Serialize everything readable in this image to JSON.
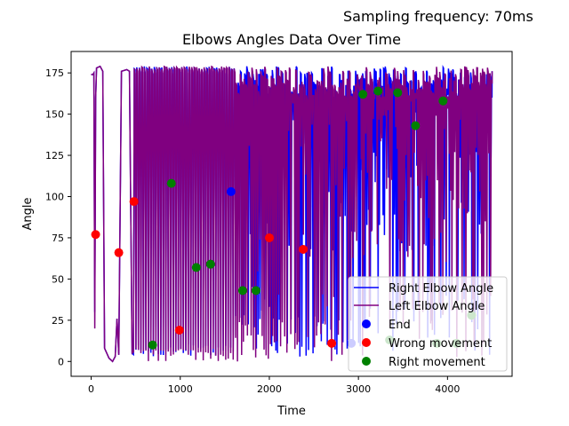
{
  "chart_data": {
    "type": "line",
    "suptitle": "Sampling frequency: 70ms",
    "title": "Elbows Angles Data Over Time",
    "xlabel": "Time",
    "ylabel": "Angle",
    "xlim": [
      -225,
      4725
    ],
    "ylim": [
      -9,
      188
    ],
    "x_ticks": [
      0,
      1000,
      2000,
      3000,
      4000
    ],
    "y_ticks": [
      0,
      25,
      50,
      75,
      100,
      125,
      150,
      175
    ],
    "grid": false,
    "legend_position": "lower-right",
    "series": [
      {
        "name": "Right Elbow Angle",
        "color": "#0000ff",
        "style": "line"
      },
      {
        "name": "Left Elbow Angle",
        "color": "#800080",
        "style": "line"
      },
      {
        "name": "End",
        "color": "#0000ff",
        "style": "scatter",
        "points": [
          [
            1570,
            103
          ],
          [
            2920,
            11
          ]
        ]
      },
      {
        "name": "Wrong movement",
        "color": "#ff0000",
        "style": "scatter",
        "points": [
          [
            50,
            77
          ],
          [
            310,
            66
          ],
          [
            480,
            97
          ],
          [
            990,
            19
          ],
          [
            2000,
            75
          ],
          [
            2380,
            68
          ],
          [
            2700,
            11
          ]
        ]
      },
      {
        "name": "Right movement",
        "color": "#008000",
        "style": "scatter",
        "points": [
          [
            690,
            10
          ],
          [
            900,
            108
          ],
          [
            1180,
            57
          ],
          [
            1340,
            59
          ],
          [
            1700,
            43
          ],
          [
            1850,
            43
          ],
          [
            3050,
            162
          ],
          [
            3220,
            164
          ],
          [
            3440,
            163
          ],
          [
            3640,
            143
          ],
          [
            3950,
            158
          ],
          [
            3350,
            13
          ],
          [
            3880,
            11
          ],
          [
            4100,
            11
          ],
          [
            4270,
            28
          ]
        ]
      }
    ]
  }
}
